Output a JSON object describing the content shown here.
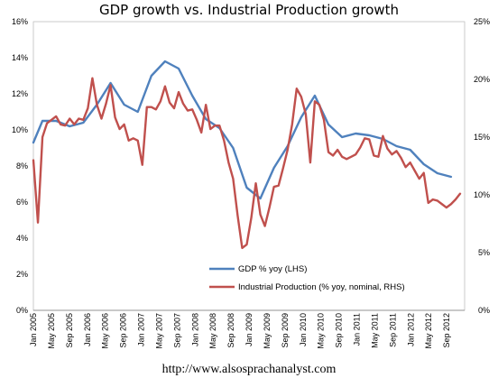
{
  "chart_data": {
    "type": "line",
    "title": "GDP growth vs. Industrial Production growth",
    "footer": "http://www.alsosprachanalyst.com",
    "left_axis": {
      "ylim": [
        0,
        16
      ],
      "ticks": [
        "0%",
        "2%",
        "4%",
        "6%",
        "8%",
        "10%",
        "12%",
        "14%",
        "16%"
      ]
    },
    "right_axis": {
      "ylim": [
        0,
        25
      ],
      "ticks": [
        "0%",
        "5%",
        "10%",
        "15%",
        "20%",
        "25%"
      ]
    },
    "x_range": [
      "2005-01",
      "2012-12"
    ],
    "x_ticks": [
      "Jan 2005",
      "May 2005",
      "Sep 2005",
      "Jan 2006",
      "May 2006",
      "Sep 2006",
      "Jan 2007",
      "May 2007",
      "Sep 2007",
      "Jan 2008",
      "May 2008",
      "Sep 2008",
      "Jan 2009",
      "May 2009",
      "Sep 2009",
      "Jan 2010",
      "May 2010",
      "Sep 2010",
      "Jan 2011",
      "May 2011",
      "Sep 2011",
      "Jan 2012",
      "May 2012",
      "Sep 2012"
    ],
    "grid": false,
    "legend_position": "bottom-center",
    "series": [
      {
        "name": "GDP % yoy (LHS)",
        "color": "#4f81bd",
        "axis": "left",
        "points": [
          [
            "2005-01",
            9.3
          ],
          [
            "2005-03",
            10.5
          ],
          [
            "2005-06",
            10.5
          ],
          [
            "2005-09",
            10.2
          ],
          [
            "2005-12",
            10.4
          ],
          [
            "2006-03",
            11.4
          ],
          [
            "2006-06",
            12.6
          ],
          [
            "2006-09",
            11.4
          ],
          [
            "2006-12",
            11.0
          ],
          [
            "2007-03",
            13.0
          ],
          [
            "2007-06",
            13.8
          ],
          [
            "2007-09",
            13.4
          ],
          [
            "2007-12",
            11.9
          ],
          [
            "2008-03",
            10.6
          ],
          [
            "2008-06",
            10.1
          ],
          [
            "2008-09",
            9.0
          ],
          [
            "2008-12",
            6.8
          ],
          [
            "2009-03",
            6.2
          ],
          [
            "2009-06",
            7.9
          ],
          [
            "2009-09",
            9.1
          ],
          [
            "2009-12",
            10.7
          ],
          [
            "2010-03",
            11.9
          ],
          [
            "2010-06",
            10.3
          ],
          [
            "2010-09",
            9.6
          ],
          [
            "2010-12",
            9.8
          ],
          [
            "2011-03",
            9.7
          ],
          [
            "2011-06",
            9.5
          ],
          [
            "2011-09",
            9.1
          ],
          [
            "2011-12",
            8.9
          ],
          [
            "2012-03",
            8.1
          ],
          [
            "2012-06",
            7.6
          ],
          [
            "2012-09",
            7.4
          ]
        ]
      },
      {
        "name": "Industrial Production (% yoy, nominal, RHS)",
        "color": "#c0504d",
        "axis": "right",
        "points": [
          [
            "2005-01",
            13.0
          ],
          [
            "2005-02",
            7.6
          ],
          [
            "2005-03",
            15.0
          ],
          [
            "2005-04",
            16.2
          ],
          [
            "2005-05",
            16.5
          ],
          [
            "2005-06",
            16.8
          ],
          [
            "2005-07",
            16.1
          ],
          [
            "2005-08",
            16.0
          ],
          [
            "2005-09",
            16.6
          ],
          [
            "2005-10",
            16.1
          ],
          [
            "2005-11",
            16.6
          ],
          [
            "2005-12",
            16.5
          ],
          [
            "2006-01",
            17.5
          ],
          [
            "2006-02",
            20.1
          ],
          [
            "2006-03",
            17.8
          ],
          [
            "2006-04",
            16.6
          ],
          [
            "2006-05",
            17.9
          ],
          [
            "2006-06",
            19.5
          ],
          [
            "2006-07",
            16.7
          ],
          [
            "2006-08",
            15.7
          ],
          [
            "2006-09",
            16.1
          ],
          [
            "2006-10",
            14.7
          ],
          [
            "2006-11",
            14.9
          ],
          [
            "2006-12",
            14.7
          ],
          [
            "2007-01",
            12.6
          ],
          [
            "2007-02",
            17.6
          ],
          [
            "2007-03",
            17.6
          ],
          [
            "2007-04",
            17.4
          ],
          [
            "2007-05",
            18.1
          ],
          [
            "2007-06",
            19.4
          ],
          [
            "2007-07",
            18.0
          ],
          [
            "2007-08",
            17.5
          ],
          [
            "2007-09",
            18.9
          ],
          [
            "2007-10",
            17.9
          ],
          [
            "2007-11",
            17.3
          ],
          [
            "2007-12",
            17.4
          ],
          [
            "2008-01",
            16.5
          ],
          [
            "2008-02",
            15.4
          ],
          [
            "2008-03",
            17.8
          ],
          [
            "2008-04",
            15.7
          ],
          [
            "2008-05",
            16.0
          ],
          [
            "2008-06",
            16.0
          ],
          [
            "2008-07",
            14.7
          ],
          [
            "2008-08",
            12.8
          ],
          [
            "2008-09",
            11.4
          ],
          [
            "2008-10",
            8.2
          ],
          [
            "2008-11",
            5.4
          ],
          [
            "2008-12",
            5.7
          ],
          [
            "2009-01",
            8.0
          ],
          [
            "2009-02",
            11.0
          ],
          [
            "2009-03",
            8.3
          ],
          [
            "2009-04",
            7.3
          ],
          [
            "2009-05",
            8.9
          ],
          [
            "2009-06",
            10.7
          ],
          [
            "2009-07",
            10.8
          ],
          [
            "2009-08",
            12.3
          ],
          [
            "2009-09",
            13.9
          ],
          [
            "2009-10",
            16.1
          ],
          [
            "2009-11",
            19.2
          ],
          [
            "2009-12",
            18.5
          ],
          [
            "2010-01",
            17.0
          ],
          [
            "2010-02",
            12.8
          ],
          [
            "2010-03",
            18.1
          ],
          [
            "2010-04",
            17.8
          ],
          [
            "2010-05",
            16.5
          ],
          [
            "2010-06",
            13.7
          ],
          [
            "2010-07",
            13.4
          ],
          [
            "2010-08",
            13.9
          ],
          [
            "2010-09",
            13.3
          ],
          [
            "2010-10",
            13.1
          ],
          [
            "2010-11",
            13.3
          ],
          [
            "2010-12",
            13.5
          ],
          [
            "2011-01",
            14.1
          ],
          [
            "2011-02",
            14.9
          ],
          [
            "2011-03",
            14.8
          ],
          [
            "2011-04",
            13.4
          ],
          [
            "2011-05",
            13.3
          ],
          [
            "2011-06",
            15.1
          ],
          [
            "2011-07",
            14.0
          ],
          [
            "2011-08",
            13.5
          ],
          [
            "2011-09",
            13.8
          ],
          [
            "2011-10",
            13.2
          ],
          [
            "2011-11",
            12.4
          ],
          [
            "2011-12",
            12.8
          ],
          [
            "2012-01",
            12.1
          ],
          [
            "2012-02",
            11.4
          ],
          [
            "2012-03",
            11.9
          ],
          [
            "2012-04",
            9.3
          ],
          [
            "2012-05",
            9.6
          ],
          [
            "2012-06",
            9.5
          ],
          [
            "2012-07",
            9.2
          ],
          [
            "2012-08",
            8.9
          ],
          [
            "2012-09",
            9.2
          ],
          [
            "2012-10",
            9.6
          ],
          [
            "2012-11",
            10.1
          ]
        ]
      }
    ]
  }
}
